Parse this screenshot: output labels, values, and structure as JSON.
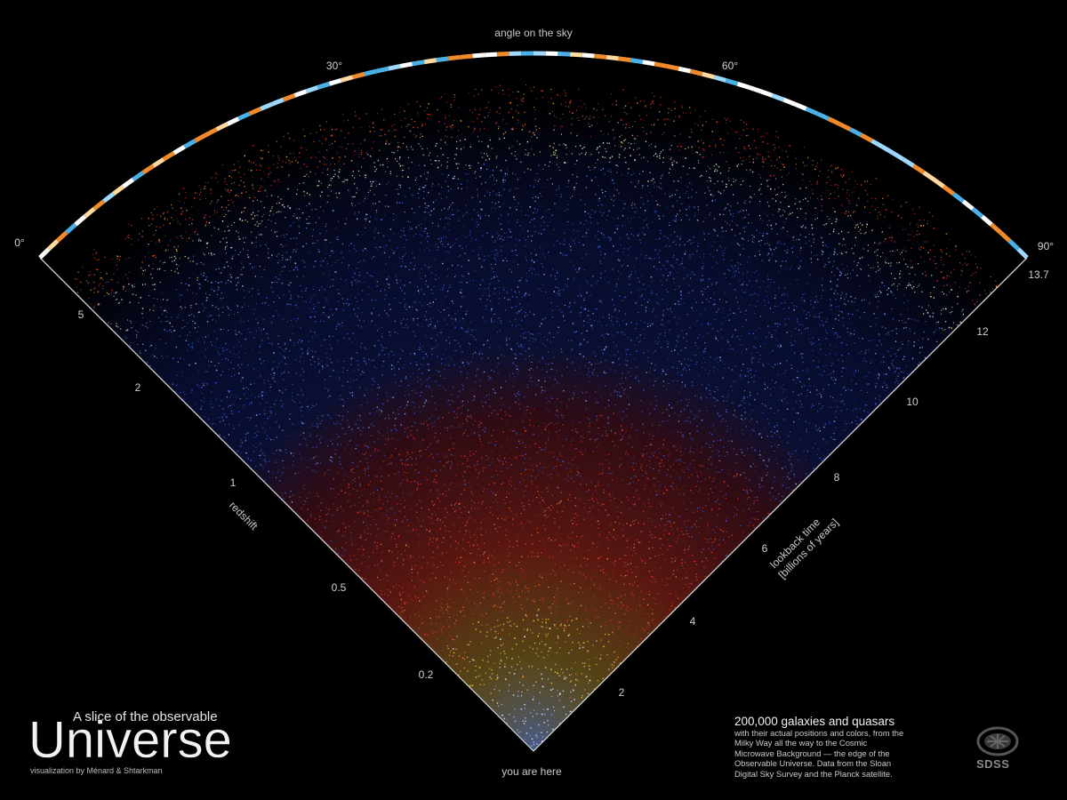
{
  "top_axis": {
    "label": "angle on the sky",
    "ticks": [
      "0°",
      "30°",
      "60°",
      "90°"
    ]
  },
  "left_axis": {
    "label": "redshift",
    "ticks": [
      "5",
      "2",
      "1",
      "0.5",
      "0.2"
    ]
  },
  "right_axis": {
    "label_line1": "lookback time",
    "label_line2": "[billions of years]",
    "ticks": [
      "13.7",
      "12",
      "10",
      "8",
      "6",
      "4",
      "2"
    ]
  },
  "origin_label": "you are here",
  "title": {
    "subtitle": "A slice of the observable",
    "main": "Universe",
    "credit": "visualization by Ménard & Shtarkman"
  },
  "description": {
    "head": "200,000 galaxies and quasars",
    "body": " with their actual positions and colors, from the Milky Way all the way to the Cosmic Microwave Background — the edge of the Observable Universe. Data from the Sloan Digital Sky Survey and the Planck satellite."
  },
  "logo_text": "SDSS",
  "colors": {
    "background": "#000000",
    "galaxy_white": "#dfe8ff",
    "galaxy_yellow": "#f2c23a",
    "galaxy_red": "#e23a2a",
    "galaxy_blue": "#3a5fd8",
    "cmb_orange": "#f08a2a",
    "cmb_blue": "#4ab0e8"
  },
  "icons": {
    "logo": "sdss-logo-icon"
  }
}
